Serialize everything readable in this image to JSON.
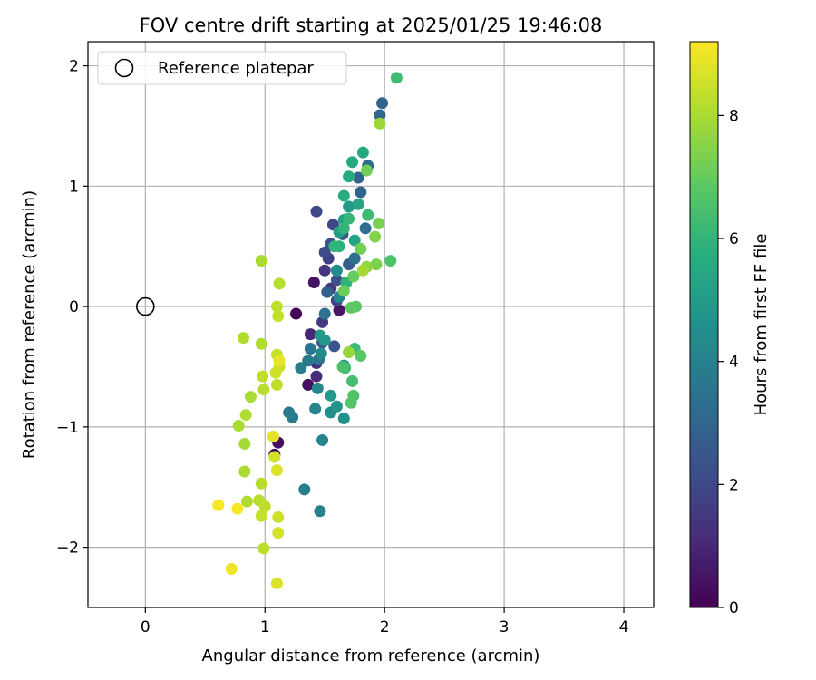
{
  "chart_data": {
    "type": "scatter",
    "title": "FOV centre drift starting at 2025/01/25 19:46:08",
    "xlabel": "Angular distance from reference (arcmin)",
    "ylabel": "Rotation from reference (arcmin)",
    "xlim": [
      -0.48,
      4.25
    ],
    "ylim": [
      -2.5,
      2.2
    ],
    "xticks": [
      0,
      1,
      2,
      3,
      4
    ],
    "yticks": [
      -2,
      -1,
      0,
      1,
      2
    ],
    "xtick_labels": [
      "0",
      "1",
      "2",
      "3",
      "4"
    ],
    "ytick_labels": [
      "−2",
      "−1",
      "0",
      "1",
      "2"
    ],
    "grid": true,
    "legend": {
      "placement": "upper-left",
      "entries": [
        "Reference platepar"
      ]
    },
    "reference_point": {
      "name": "Reference platepar",
      "x": 0,
      "y": 0
    },
    "colorbar": {
      "label": "Hours from first FF file",
      "colormap": "viridis",
      "range": [
        0,
        9.2
      ],
      "ticks": [
        0,
        2,
        4,
        6,
        8
      ],
      "tick_labels": [
        "0",
        "2",
        "4",
        "6",
        "8"
      ]
    },
    "points": [
      {
        "x": 1.26,
        "y": -0.06,
        "c": 0.1
      },
      {
        "x": 1.08,
        "y": -1.23,
        "c": 0.3
      },
      {
        "x": 1.11,
        "y": -1.13,
        "c": 0.4
      },
      {
        "x": 1.36,
        "y": -0.65,
        "c": 0.4
      },
      {
        "x": 1.41,
        "y": 0.2,
        "c": 0.5
      },
      {
        "x": 1.62,
        "y": -0.03,
        "c": 0.6
      },
      {
        "x": 1.38,
        "y": -0.23,
        "c": 1.0
      },
      {
        "x": 1.43,
        "y": -0.58,
        "c": 1.1
      },
      {
        "x": 1.43,
        "y": -0.47,
        "c": 1.3
      },
      {
        "x": 1.5,
        "y": 0.3,
        "c": 1.4
      },
      {
        "x": 1.55,
        "y": 0.15,
        "c": 1.5
      },
      {
        "x": 1.48,
        "y": -0.13,
        "c": 1.6
      },
      {
        "x": 1.53,
        "y": 0.4,
        "c": 1.7
      },
      {
        "x": 1.6,
        "y": 0.05,
        "c": 1.8
      },
      {
        "x": 1.57,
        "y": 0.68,
        "c": 1.9
      },
      {
        "x": 1.43,
        "y": 0.79,
        "c": 2.0
      },
      {
        "x": 1.5,
        "y": 0.45,
        "c": 2.1
      },
      {
        "x": 1.55,
        "y": 0.52,
        "c": 2.2
      },
      {
        "x": 1.6,
        "y": 0.22,
        "c": 2.3
      },
      {
        "x": 1.58,
        "y": -0.33,
        "c": 2.4
      },
      {
        "x": 1.48,
        "y": -0.3,
        "c": 2.5
      },
      {
        "x": 1.65,
        "y": 0.6,
        "c": 2.6
      },
      {
        "x": 1.7,
        "y": 0.35,
        "c": 2.7
      },
      {
        "x": 1.52,
        "y": 0.12,
        "c": 2.8
      },
      {
        "x": 1.78,
        "y": 1.07,
        "c": 2.9
      },
      {
        "x": 1.8,
        "y": 0.95,
        "c": 3.0
      },
      {
        "x": 1.98,
        "y": 1.69,
        "c": 3.0
      },
      {
        "x": 1.96,
        "y": 1.59,
        "c": 3.1
      },
      {
        "x": 1.86,
        "y": 1.17,
        "c": 3.2
      },
      {
        "x": 1.84,
        "y": 0.65,
        "c": 3.3
      },
      {
        "x": 1.75,
        "y": 0.4,
        "c": 3.4
      },
      {
        "x": 1.5,
        "y": -0.06,
        "c": 3.5
      },
      {
        "x": 1.45,
        "y": -0.44,
        "c": 3.5
      },
      {
        "x": 1.38,
        "y": -0.35,
        "c": 3.6
      },
      {
        "x": 1.36,
        "y": -0.45,
        "c": 3.7
      },
      {
        "x": 1.2,
        "y": -0.88,
        "c": 3.7
      },
      {
        "x": 1.23,
        "y": -0.92,
        "c": 3.8
      },
      {
        "x": 1.3,
        "y": -0.51,
        "c": 3.9
      },
      {
        "x": 1.33,
        "y": -1.52,
        "c": 3.9
      },
      {
        "x": 1.46,
        "y": -1.7,
        "c": 4.0
      },
      {
        "x": 1.48,
        "y": -1.11,
        "c": 4.1
      },
      {
        "x": 1.42,
        "y": -0.85,
        "c": 4.1
      },
      {
        "x": 1.44,
        "y": -0.68,
        "c": 4.2
      },
      {
        "x": 1.47,
        "y": -0.39,
        "c": 4.3
      },
      {
        "x": 1.62,
        "y": 0.08,
        "c": 4.3
      },
      {
        "x": 1.6,
        "y": 0.3,
        "c": 4.4
      },
      {
        "x": 1.66,
        "y": -0.49,
        "c": 4.5
      },
      {
        "x": 1.55,
        "y": -0.88,
        "c": 4.5
      },
      {
        "x": 1.66,
        "y": -0.93,
        "c": 4.6
      },
      {
        "x": 1.6,
        "y": -0.83,
        "c": 4.7
      },
      {
        "x": 1.5,
        "y": -0.28,
        "c": 4.8
      },
      {
        "x": 1.46,
        "y": -0.24,
        "c": 4.9
      },
      {
        "x": 1.55,
        "y": -0.74,
        "c": 4.9
      },
      {
        "x": 1.7,
        "y": 0.83,
        "c": 5.0
      },
      {
        "x": 1.62,
        "y": 0.62,
        "c": 5.1
      },
      {
        "x": 1.66,
        "y": 0.72,
        "c": 5.2
      },
      {
        "x": 1.75,
        "y": 0.55,
        "c": 5.3
      },
      {
        "x": 1.78,
        "y": 0.85,
        "c": 5.4
      },
      {
        "x": 1.73,
        "y": 1.2,
        "c": 5.5
      },
      {
        "x": 1.82,
        "y": 1.28,
        "c": 5.5
      },
      {
        "x": 1.7,
        "y": 1.08,
        "c": 5.6
      },
      {
        "x": 1.66,
        "y": 0.92,
        "c": 5.7
      },
      {
        "x": 1.62,
        "y": 0.5,
        "c": 5.8
      },
      {
        "x": 1.68,
        "y": 0.2,
        "c": 5.9
      },
      {
        "x": 1.58,
        "y": 0.5,
        "c": 6.0
      },
      {
        "x": 1.66,
        "y": 0.65,
        "c": 6.0
      },
      {
        "x": 1.7,
        "y": 0.73,
        "c": 6.1
      },
      {
        "x": 1.86,
        "y": 0.76,
        "c": 6.2
      },
      {
        "x": 1.75,
        "y": -0.35,
        "c": 6.2
      },
      {
        "x": 1.67,
        "y": -0.51,
        "c": 6.3
      },
      {
        "x": 1.73,
        "y": -0.62,
        "c": 6.4
      },
      {
        "x": 1.65,
        "y": -0.5,
        "c": 6.5
      },
      {
        "x": 1.74,
        "y": -0.74,
        "c": 6.6
      },
      {
        "x": 1.72,
        "y": -0.8,
        "c": 6.7
      },
      {
        "x": 1.8,
        "y": -0.41,
        "c": 6.8
      },
      {
        "x": 1.76,
        "y": 0.0,
        "c": 6.8
      },
      {
        "x": 1.72,
        "y": -0.01,
        "c": 6.9
      },
      {
        "x": 1.74,
        "y": 0.25,
        "c": 7.0
      },
      {
        "x": 1.66,
        "y": 0.13,
        "c": 7.1
      },
      {
        "x": 1.8,
        "y": 0.48,
        "c": 7.2
      },
      {
        "x": 1.85,
        "y": 1.13,
        "c": 7.2
      },
      {
        "x": 1.93,
        "y": 0.35,
        "c": 7.3
      },
      {
        "x": 1.92,
        "y": 0.58,
        "c": 7.4
      },
      {
        "x": 2.1,
        "y": 1.9,
        "c": 6.3
      },
      {
        "x": 2.05,
        "y": 0.38,
        "c": 6.6
      },
      {
        "x": 1.95,
        "y": 0.69,
        "c": 7.3
      },
      {
        "x": 1.85,
        "y": 0.33,
        "c": 7.6
      },
      {
        "x": 1.96,
        "y": 1.52,
        "c": 7.8
      },
      {
        "x": 1.82,
        "y": 0.3,
        "c": 7.9
      },
      {
        "x": 1.7,
        "y": -0.38,
        "c": 7.7
      },
      {
        "x": 0.97,
        "y": 0.38,
        "c": 8.0
      },
      {
        "x": 0.82,
        "y": -0.26,
        "c": 8.1
      },
      {
        "x": 0.97,
        "y": -0.31,
        "c": 8.1
      },
      {
        "x": 1.12,
        "y": 0.19,
        "c": 8.2
      },
      {
        "x": 1.1,
        "y": 0.0,
        "c": 8.3
      },
      {
        "x": 1.11,
        "y": -0.08,
        "c": 8.4
      },
      {
        "x": 1.1,
        "y": -0.4,
        "c": 8.4
      },
      {
        "x": 1.09,
        "y": -0.55,
        "c": 8.5
      },
      {
        "x": 1.12,
        "y": -0.5,
        "c": 8.5
      },
      {
        "x": 0.98,
        "y": -0.58,
        "c": 8.3
      },
      {
        "x": 0.99,
        "y": -0.69,
        "c": 8.2
      },
      {
        "x": 1.1,
        "y": -0.65,
        "c": 8.3
      },
      {
        "x": 0.88,
        "y": -0.75,
        "c": 8.0
      },
      {
        "x": 0.84,
        "y": -0.9,
        "c": 8.1
      },
      {
        "x": 0.78,
        "y": -0.99,
        "c": 8.0
      },
      {
        "x": 0.83,
        "y": -1.14,
        "c": 7.9
      },
      {
        "x": 0.83,
        "y": -1.37,
        "c": 8.0
      },
      {
        "x": 0.97,
        "y": -1.47,
        "c": 8.2
      },
      {
        "x": 0.85,
        "y": -1.62,
        "c": 8.1
      },
      {
        "x": 0.95,
        "y": -1.61,
        "c": 8.2
      },
      {
        "x": 1.0,
        "y": -1.66,
        "c": 8.3
      },
      {
        "x": 0.97,
        "y": -1.74,
        "c": 8.4
      },
      {
        "x": 0.99,
        "y": -2.01,
        "c": 8.3
      },
      {
        "x": 1.11,
        "y": -1.75,
        "c": 8.5
      },
      {
        "x": 1.11,
        "y": -1.88,
        "c": 8.6
      },
      {
        "x": 1.1,
        "y": -2.3,
        "c": 8.7
      },
      {
        "x": 1.08,
        "y": -1.25,
        "c": 8.6
      },
      {
        "x": 1.1,
        "y": -1.36,
        "c": 8.7
      },
      {
        "x": 1.07,
        "y": -1.08,
        "c": 8.8
      },
      {
        "x": 1.12,
        "y": -0.45,
        "c": 8.9
      },
      {
        "x": 0.77,
        "y": -1.68,
        "c": 9.1
      },
      {
        "x": 0.61,
        "y": -1.65,
        "c": 9.1
      },
      {
        "x": 0.72,
        "y": -2.18,
        "c": 9.0
      }
    ]
  }
}
